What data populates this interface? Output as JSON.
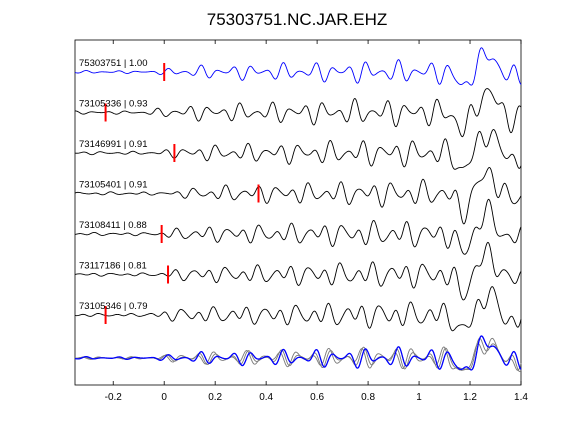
{
  "chart_data": {
    "type": "line",
    "title": "75303751.NC.JAR.EHZ",
    "xlabel": "",
    "ylabel": "",
    "xlim": [
      -0.35,
      1.4
    ],
    "x_ticks": [
      -0.2,
      0,
      0.2,
      0.4,
      0.6,
      0.8,
      1,
      1.2,
      1.4
    ],
    "x_tick_labels": [
      "-0.2",
      "0",
      "0.2",
      "0.4",
      "0.6",
      "0.8",
      "1",
      "1.2",
      "1.4"
    ],
    "grid": false,
    "master_color": "#0000ff",
    "trace_color": "#000000",
    "pick_color": "#ff0000",
    "stack_color": "#808080",
    "traces": [
      {
        "label": "75303751 | 1.00",
        "pick_time": 0.0,
        "color": "#0000ff"
      },
      {
        "label": "73105336 | 0.93",
        "pick_time": -0.23,
        "color": "#000000"
      },
      {
        "label": "73146991 | 0.91",
        "pick_time": 0.04,
        "color": "#000000"
      },
      {
        "label": "73105401 | 0.91",
        "pick_time": 0.37,
        "color": "#000000"
      },
      {
        "label": "73108411 | 0.88",
        "pick_time": -0.01,
        "color": "#000000"
      },
      {
        "label": "73117186 | 0.81",
        "pick_time": 0.015,
        "color": "#000000"
      },
      {
        "label": "73105346 | 0.79",
        "pick_time": -0.23,
        "color": "#000000"
      }
    ],
    "overlay": {
      "description_label": "",
      "series_count": 7
    }
  }
}
